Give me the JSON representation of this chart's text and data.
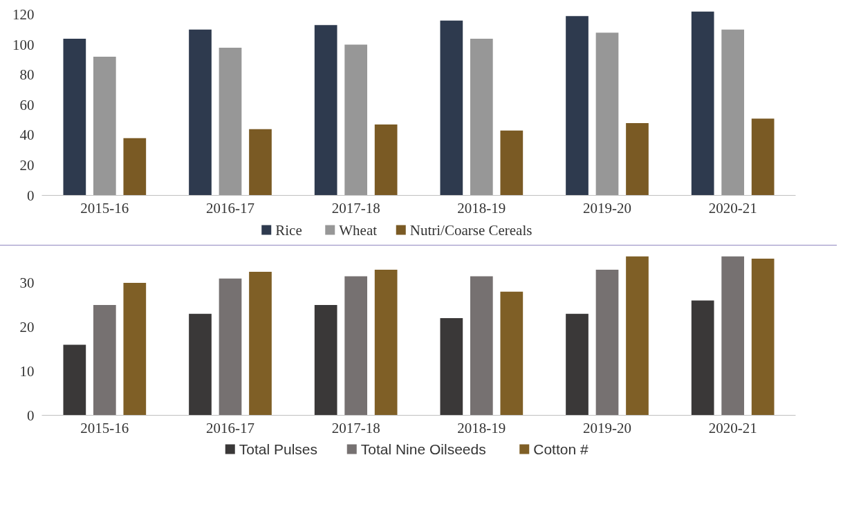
{
  "chart_data": [
    {
      "type": "bar",
      "categories": [
        "2015-16",
        "2016-17",
        "2017-18",
        "2018-19",
        "2019-20",
        "2020-21"
      ],
      "ylim": [
        0,
        123
      ],
      "yticks": [
        0,
        20,
        40,
        60,
        80,
        100,
        120
      ],
      "grid": false,
      "legend": "bottom",
      "series": [
        {
          "name": "Rice",
          "color": "#2e3a4e",
          "values": [
            104,
            110,
            113,
            116,
            119,
            122
          ]
        },
        {
          "name": "Wheat",
          "color": "#979797",
          "values": [
            92,
            98,
            100,
            104,
            108,
            110
          ]
        },
        {
          "name": "Nutri/Coarse Cereals",
          "color": "#7a5a24",
          "values": [
            38,
            44,
            47,
            43,
            48,
            51
          ]
        }
      ]
    },
    {
      "type": "bar",
      "categories": [
        "2015-16",
        "2016-17",
        "2017-18",
        "2018-19",
        "2019-20",
        "2020-21"
      ],
      "ylim": [
        0,
        36.2
      ],
      "yticks": [
        0,
        10,
        20,
        30
      ],
      "grid": false,
      "legend": "bottom",
      "series": [
        {
          "name": "Total Pulses",
          "color": "#3a3838",
          "values": [
            16,
            23,
            25,
            22,
            23,
            26
          ]
        },
        {
          "name": "Total Nine Oilseeds",
          "color": "#767171",
          "values": [
            25,
            31,
            31.5,
            31.5,
            33,
            36
          ]
        },
        {
          "name": "Cotton #",
          "color": "#7f5f26",
          "values": [
            30,
            32.5,
            33,
            28,
            36,
            35.5
          ]
        }
      ]
    }
  ]
}
